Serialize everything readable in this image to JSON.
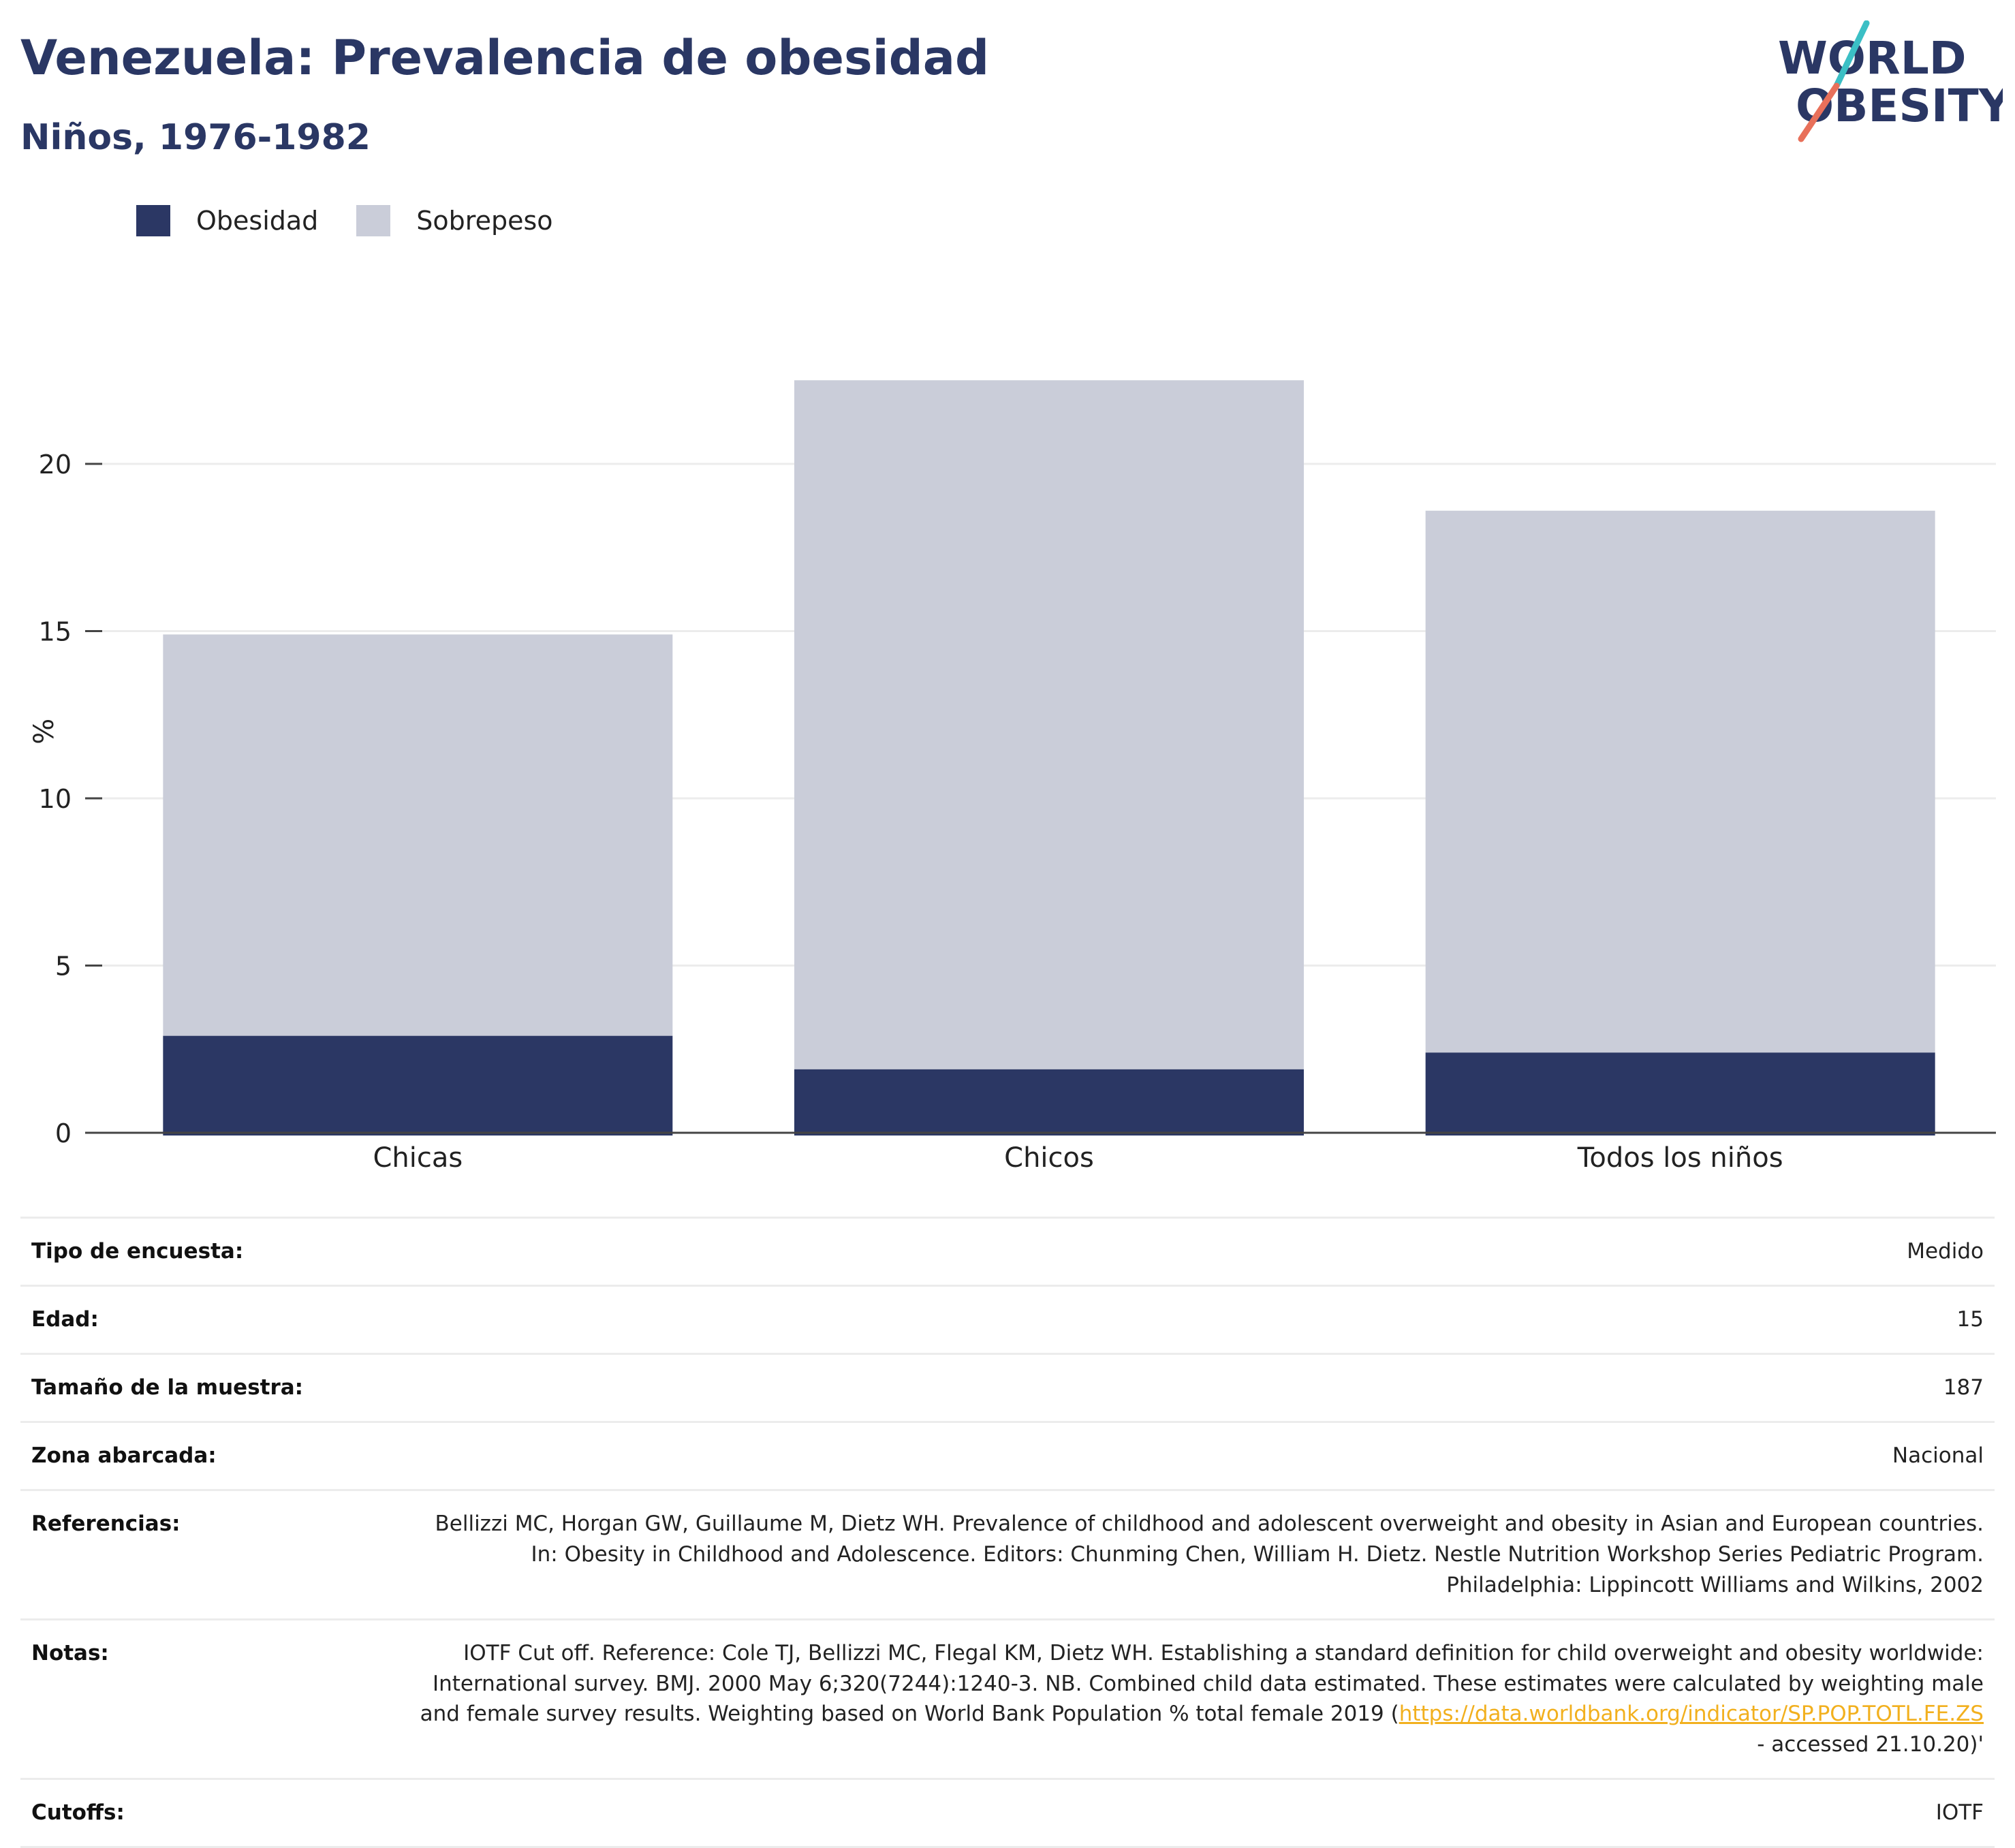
{
  "header": {
    "title": "Venezuela: Prevalencia de obesidad",
    "subtitle": "Niños, 1976-1982"
  },
  "logo": {
    "line1": "WORLD",
    "line2": "OBESITY",
    "accent_colors": [
      "#3bbfc5",
      "#e8705a"
    ]
  },
  "colors": {
    "obesity": "#2b3764",
    "overweight": "#cacdd9",
    "text": "#2a3764",
    "link": "#f2b01e"
  },
  "chart_data": {
    "type": "bar",
    "stacked": true,
    "categories": [
      "Chicas",
      "Chicos",
      "Todos los niños"
    ],
    "series": [
      {
        "name": "Obesidad",
        "values": [
          2.9,
          1.9,
          2.4
        ],
        "color": "#2b3764"
      },
      {
        "name": "Sobrepeso",
        "values": [
          12.0,
          20.6,
          16.2
        ],
        "color": "#cacdd9"
      }
    ],
    "ylabel": "%",
    "ylim": [
      0,
      25
    ],
    "yticks": [
      0,
      5,
      10,
      15,
      20
    ],
    "grid": true,
    "legend": "top-left"
  },
  "metadata": [
    {
      "label": "Tipo de encuesta:",
      "value": "Medido"
    },
    {
      "label": "Edad:",
      "value": "15"
    },
    {
      "label": "Tamaño de la muestra:",
      "value": "187"
    },
    {
      "label": "Zona abarcada:",
      "value": "Nacional"
    },
    {
      "label": "Referencias:",
      "value": "Bellizzi MC, Horgan GW, Guillaume M, Dietz WH. Prevalence of childhood and adolescent overweight and obesity in Asian and European countries. In: Obesity in Childhood and Adolescence. Editors: Chunming Chen, William H. Dietz. Nestle Nutrition Workshop Series Pediatric Program. Philadelphia: Lippincott Williams and Wilkins, 2002"
    },
    {
      "label": "Notas:",
      "value": "IOTF Cut off. Reference: Cole TJ, Bellizzi MC, Flegal KM, Dietz WH. Establishing a standard definition for child overweight and obesity worldwide: International survey. BMJ. 2000 May 6;320(7244):1240-3. NB. Combined child data estimated. These estimates were calculated by weighting male and female survey results. Weighting based on World Bank Population % total female 2019 (",
      "link": "https://data.worldbank.org/indicator/SP.POP.TOTL.FE.ZS",
      "suffix": " - accessed 21.10.20)'"
    },
    {
      "label": "Cutoffs:",
      "value": "IOTF"
    }
  ]
}
